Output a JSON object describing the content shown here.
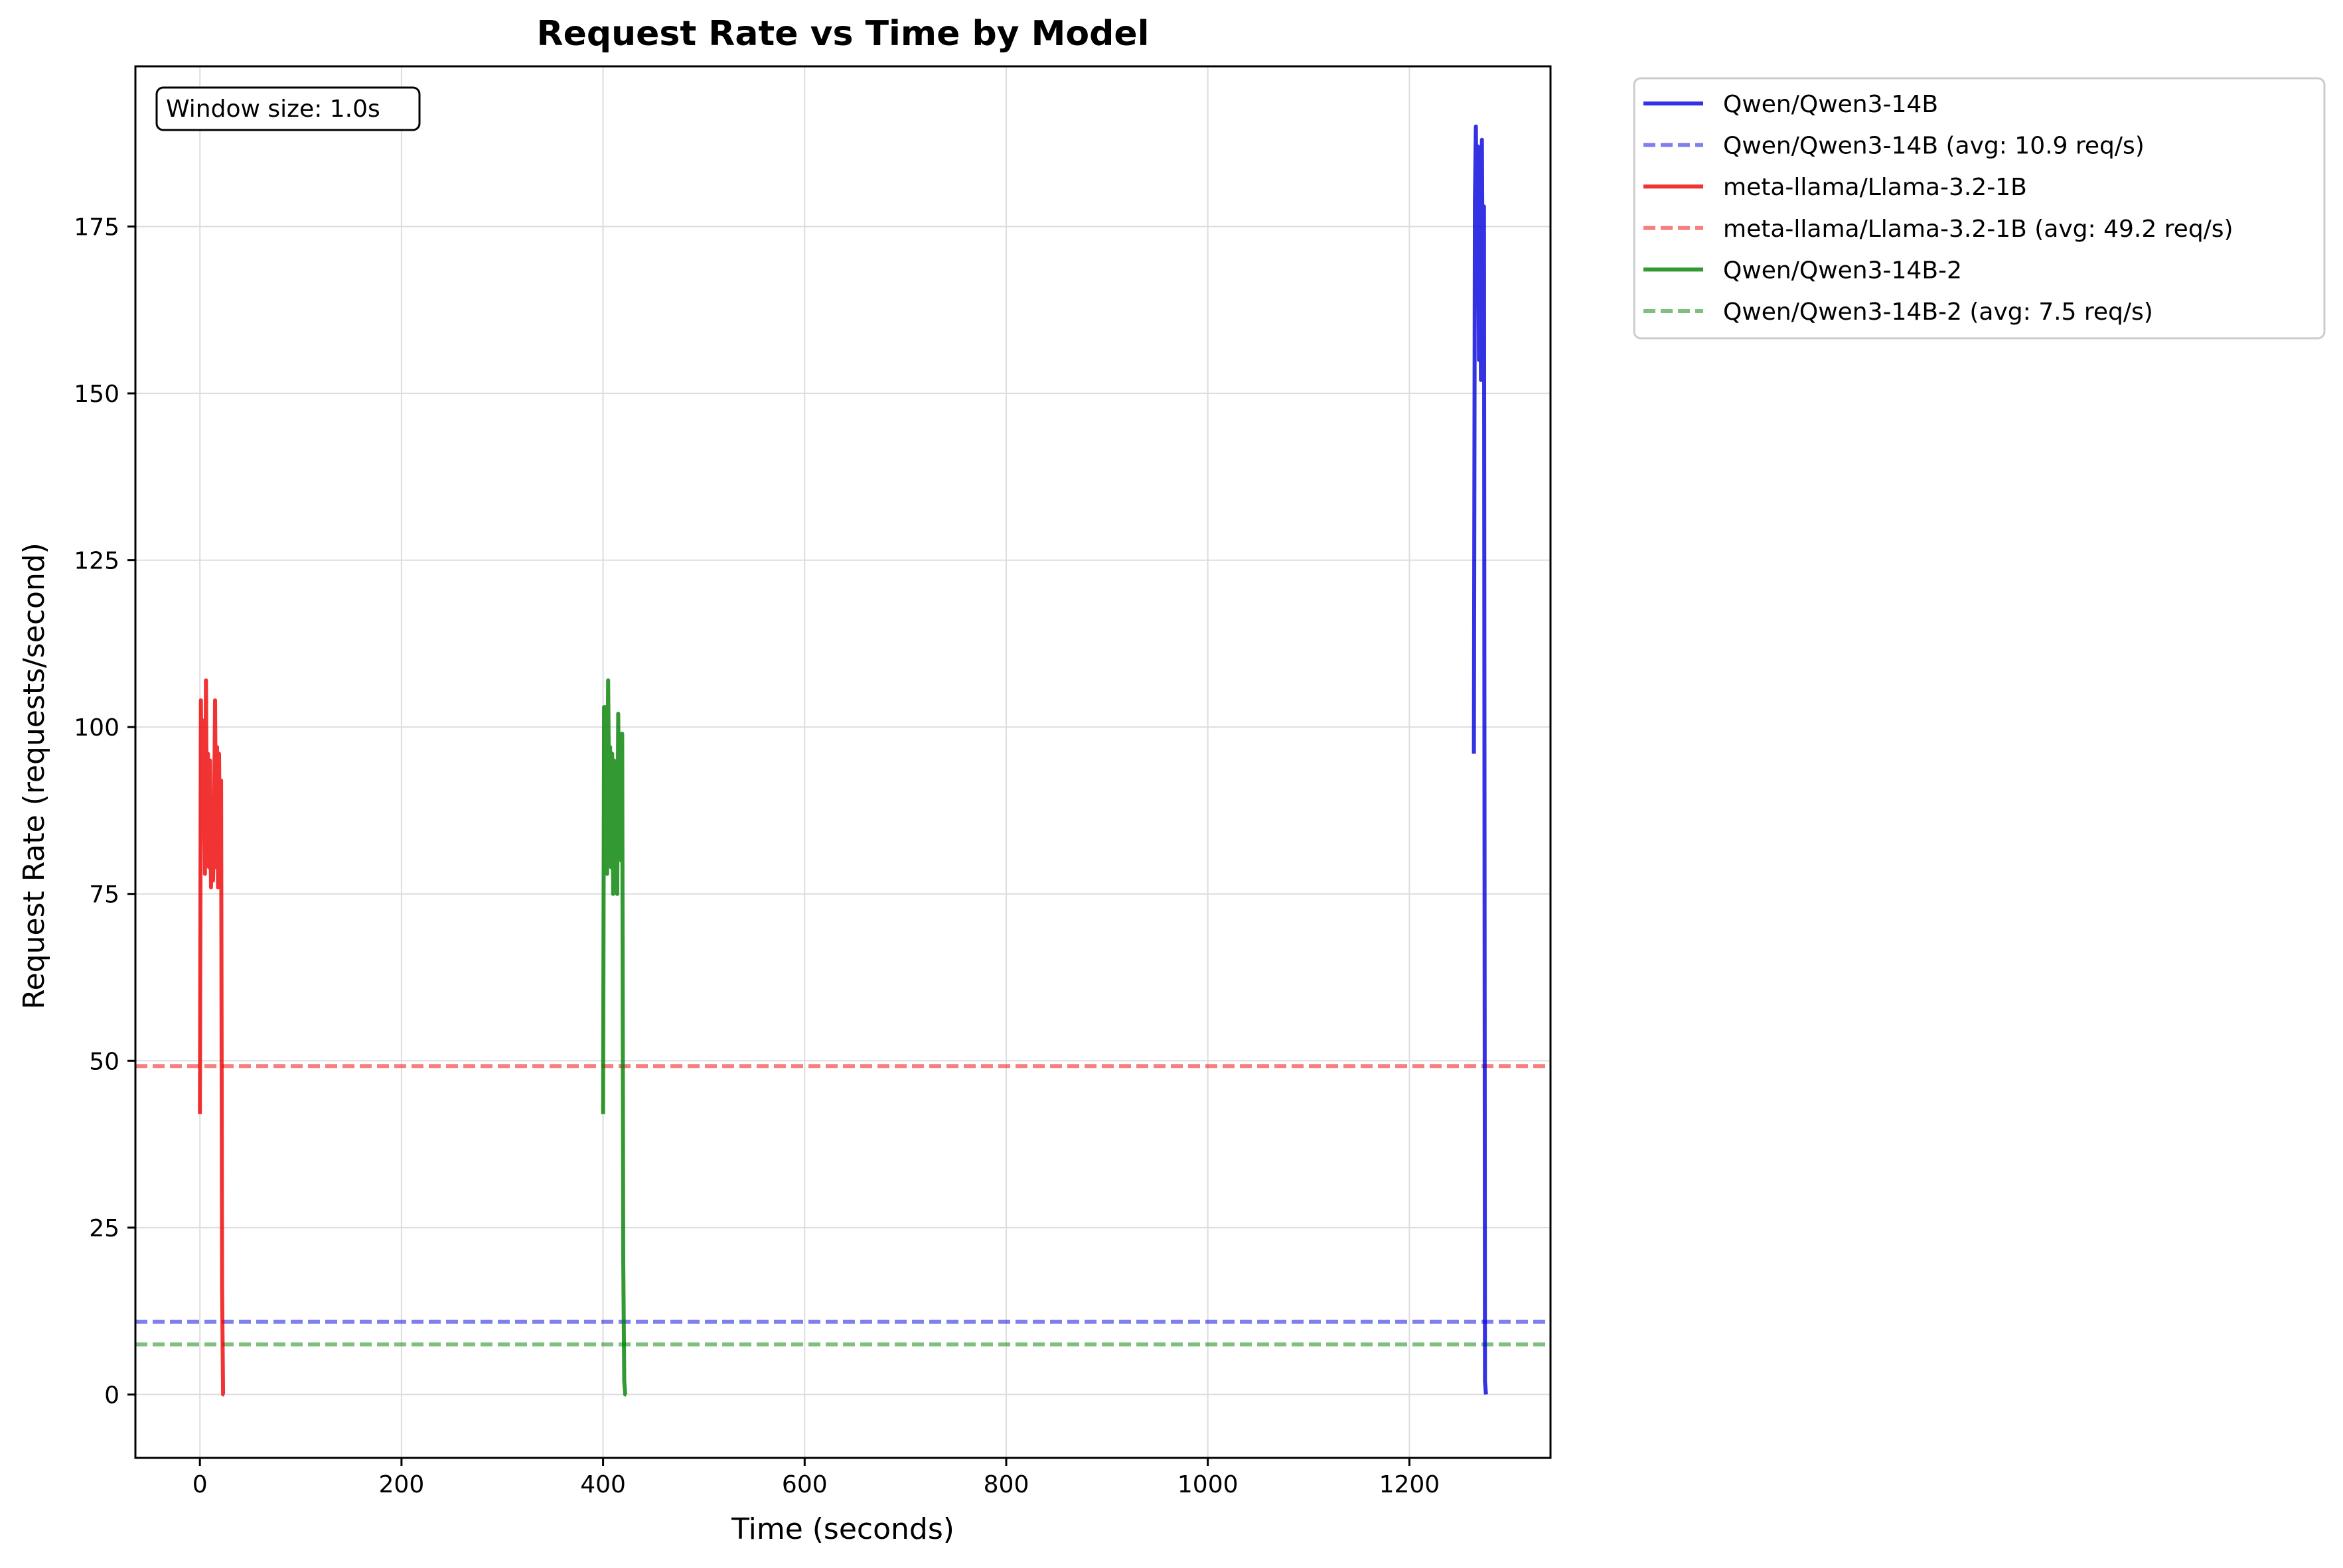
{
  "chart_data": {
    "type": "line",
    "title": "Request Rate vs Time by Model",
    "xlabel": "Time (seconds)",
    "ylabel": "Request Rate (requests/second)",
    "xlim": [
      -64,
      1340
    ],
    "ylim": [
      -9.5,
      199
    ],
    "xticks": [
      0,
      200,
      400,
      600,
      800,
      1000,
      1200
    ],
    "yticks": [
      0,
      25,
      50,
      75,
      100,
      125,
      150,
      175
    ],
    "grid": true,
    "legend_position": "outside-right",
    "annotation": "Window size: 1.0s",
    "series": [
      {
        "name": "Qwen/Qwen3-14B",
        "color": "#0000dd",
        "style": "solid",
        "x": [
          1264,
          1265,
          1266,
          1267,
          1268,
          1269,
          1270,
          1271,
          1272,
          1273,
          1274,
          1275,
          1276
        ],
        "y": [
          96,
          179,
          190,
          168,
          187,
          155,
          183,
          152,
          188,
          152,
          178,
          2,
          0
        ]
      },
      {
        "name": "Qwen/Qwen3-14B (avg: 10.9 req/s)",
        "color": "#0000dd",
        "style": "dashed",
        "x": [
          -64,
          1340
        ],
        "y": [
          10.9,
          10.9
        ]
      },
      {
        "name": "meta-llama/Llama-3.2-1B",
        "color": "#ee0000",
        "style": "solid",
        "x": [
          0,
          1,
          2,
          3,
          4,
          5,
          6,
          7,
          8,
          9,
          10,
          11,
          12,
          13,
          14,
          15,
          16,
          17,
          18,
          19,
          20,
          21,
          22,
          23,
          24
        ],
        "y": [
          42,
          104,
          85,
          101,
          93,
          78,
          107,
          82,
          96,
          79,
          95,
          76,
          89,
          77,
          84,
          104,
          79,
          97,
          76,
          96,
          78,
          92,
          16,
          0,
          0
        ]
      },
      {
        "name": "meta-llama/Llama-3.2-1B (avg: 49.2 req/s)",
        "color": "#ee0000",
        "style": "dashed",
        "x": [
          -64,
          1340
        ],
        "y": [
          49.2,
          49.2
        ]
      },
      {
        "name": "Qwen/Qwen3-14B-2",
        "color": "#008000",
        "style": "solid",
        "x": [
          400,
          401,
          402,
          403,
          404,
          405,
          406,
          407,
          408,
          409,
          410,
          411,
          412,
          413,
          414,
          415,
          416,
          417,
          418,
          419,
          420,
          421,
          422,
          423
        ],
        "y": [
          42,
          103,
          85,
          103,
          78,
          107,
          90,
          97,
          79,
          96,
          75,
          95,
          82,
          94,
          75,
          102,
          83,
          99,
          80,
          99,
          20,
          2,
          0,
          0
        ]
      },
      {
        "name": "Qwen/Qwen3-14B-2 (avg: 7.5 req/s)",
        "color": "#008000",
        "style": "dashed",
        "x": [
          -64,
          1340
        ],
        "y": [
          7.5,
          7.5
        ]
      }
    ]
  }
}
